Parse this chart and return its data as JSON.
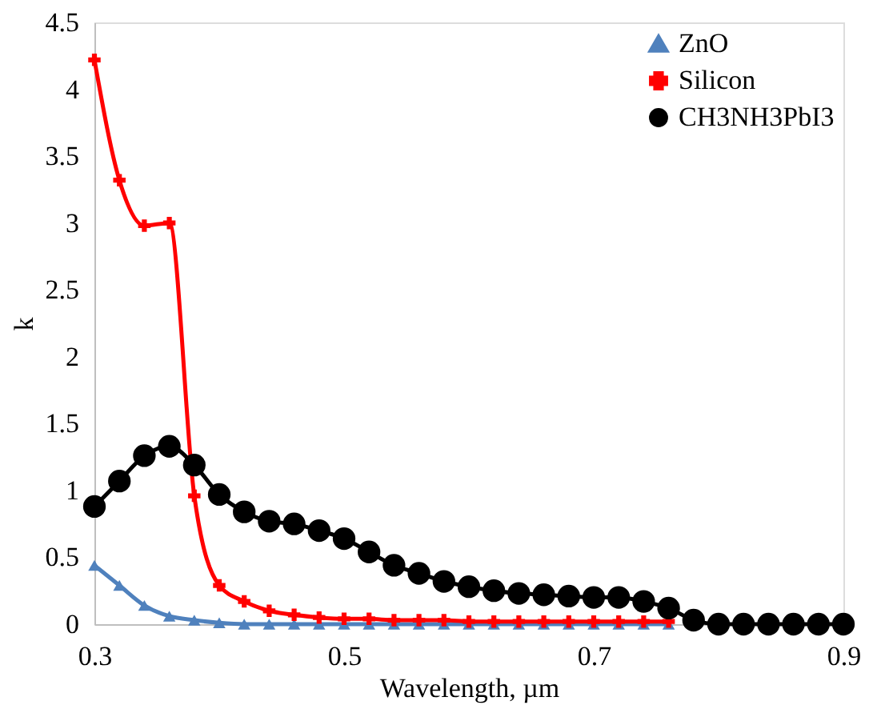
{
  "chart_data": {
    "type": "line",
    "xlabel": "Wavelength, µm",
    "ylabel": "k",
    "xlim": [
      0.3,
      0.9
    ],
    "xticks": [
      0.3,
      0.5,
      0.7,
      0.9
    ],
    "ylim": [
      0,
      4.5
    ],
    "yticks": [
      0,
      0.5,
      1,
      1.5,
      2,
      2.5,
      3,
      3.5,
      4,
      4.5
    ],
    "grid": false,
    "legend": "top right",
    "series": [
      {
        "name": "ZnO",
        "color": "#4f81bd",
        "marker": "triangle",
        "x": [
          0.3,
          0.32,
          0.34,
          0.36,
          0.38,
          0.4,
          0.42,
          0.44,
          0.46,
          0.48,
          0.5,
          0.52,
          0.54,
          0.56,
          0.58,
          0.6,
          0.62,
          0.64,
          0.66,
          0.68,
          0.7,
          0.72,
          0.74,
          0.76
        ],
        "values": [
          0.44,
          0.29,
          0.14,
          0.06,
          0.03,
          0.01,
          0,
          0,
          0,
          0,
          0,
          0,
          0,
          0,
          0,
          0,
          0,
          0,
          0,
          0,
          0,
          0,
          0,
          0
        ]
      },
      {
        "name": "Silicon",
        "color": "#ff0000",
        "marker": "cross",
        "x": [
          0.3,
          0.32,
          0.34,
          0.36,
          0.38,
          0.4,
          0.42,
          0.44,
          0.46,
          0.48,
          0.5,
          0.52,
          0.54,
          0.56,
          0.58,
          0.6,
          0.62,
          0.64,
          0.66,
          0.68,
          0.7,
          0.72,
          0.74,
          0.76
        ],
        "values": [
          4.22,
          3.32,
          2.98,
          3.0,
          0.96,
          0.29,
          0.17,
          0.1,
          0.07,
          0.05,
          0.04,
          0.04,
          0.03,
          0.03,
          0.03,
          0.02,
          0.02,
          0.02,
          0.02,
          0.02,
          0.02,
          0.02,
          0.02,
          0.02
        ]
      },
      {
        "name": "CH3NH3PbI3",
        "color": "#000000",
        "marker": "circle",
        "x": [
          0.3,
          0.32,
          0.34,
          0.36,
          0.38,
          0.4,
          0.42,
          0.44,
          0.46,
          0.48,
          0.5,
          0.52,
          0.54,
          0.56,
          0.58,
          0.6,
          0.62,
          0.64,
          0.66,
          0.68,
          0.7,
          0.72,
          0.74,
          0.76,
          0.78,
          0.8,
          0.82,
          0.84,
          0.86,
          0.88,
          0.9
        ],
        "values": [
          0.88,
          1.07,
          1.26,
          1.33,
          1.19,
          0.97,
          0.84,
          0.77,
          0.75,
          0.7,
          0.64,
          0.54,
          0.44,
          0.38,
          0.32,
          0.28,
          0.25,
          0.23,
          0.22,
          0.21,
          0.2,
          0.2,
          0.17,
          0.12,
          0.03,
          0,
          0,
          0,
          0,
          0,
          0
        ]
      }
    ]
  }
}
